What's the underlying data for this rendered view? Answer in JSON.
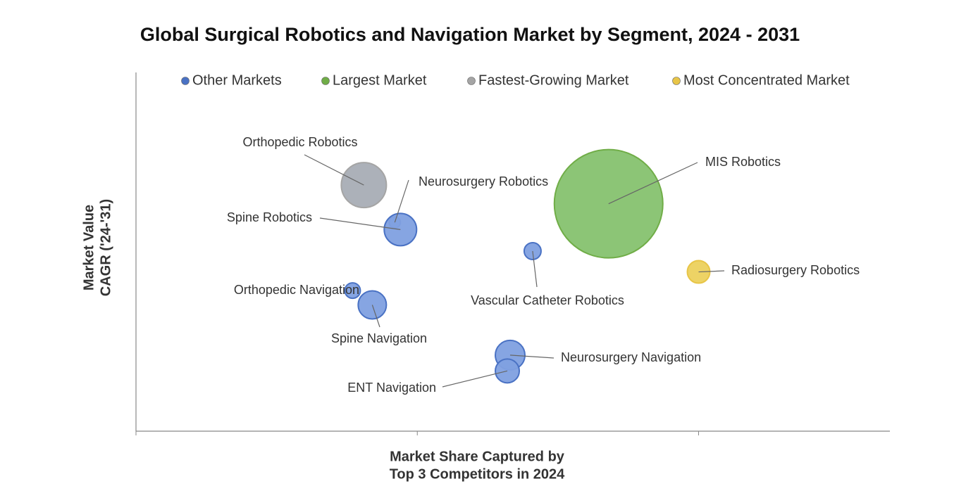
{
  "chart_data": {
    "type": "bubble",
    "title": "Global Surgical Robotics and Navigation Market by Segment, 2024 - 2031",
    "xlabel": [
      "Market Share Captured by",
      "Top 3 Competitors in 2024"
    ],
    "ylabel": [
      "Market Value",
      "CAGR ('24-'31)"
    ],
    "xlim": [
      0,
      2.68
    ],
    "ylim": [
      0,
      5
    ],
    "xticks": [
      0,
      1,
      2
    ],
    "legend": "top",
    "series": [
      {
        "name": "Other Markets",
        "color": "#4a72c4",
        "labels": [
          "Neurosurgery Robotics",
          "Spine Robotics",
          "Vascular Catheter Robotics",
          "Orthopedic Navigation",
          "Spine Navigation",
          "Neurosurgery Navigation",
          "ENT Navigation"
        ],
        "x": [
          0.92,
          0.94,
          1.41,
          0.77,
          0.84,
          1.33,
          1.32
        ],
        "values": [
          2.91,
          2.81,
          2.51,
          1.96,
          1.76,
          1.06,
          0.84
        ],
        "sizes": [
          8,
          23,
          12,
          11,
          20,
          21,
          17
        ]
      },
      {
        "name": "Largest Market",
        "color": "#70ad47",
        "labels": [
          "MIS Robotics"
        ],
        "x": [
          1.68
        ],
        "values": [
          3.17
        ],
        "sizes": [
          77
        ]
      },
      {
        "name": "Fastest-Growing Market",
        "color": "#a5a5a5",
        "labels": [
          "Orthopedic Robotics"
        ],
        "x": [
          0.81
        ],
        "values": [
          3.43
        ],
        "sizes": [
          32
        ]
      },
      {
        "name": "Most Concentrated Market",
        "color": "#e8c547",
        "labels": [
          "Radiosurgery Robotics"
        ],
        "x": [
          2.0
        ],
        "values": [
          2.22
        ],
        "sizes": [
          16
        ]
      }
    ]
  }
}
